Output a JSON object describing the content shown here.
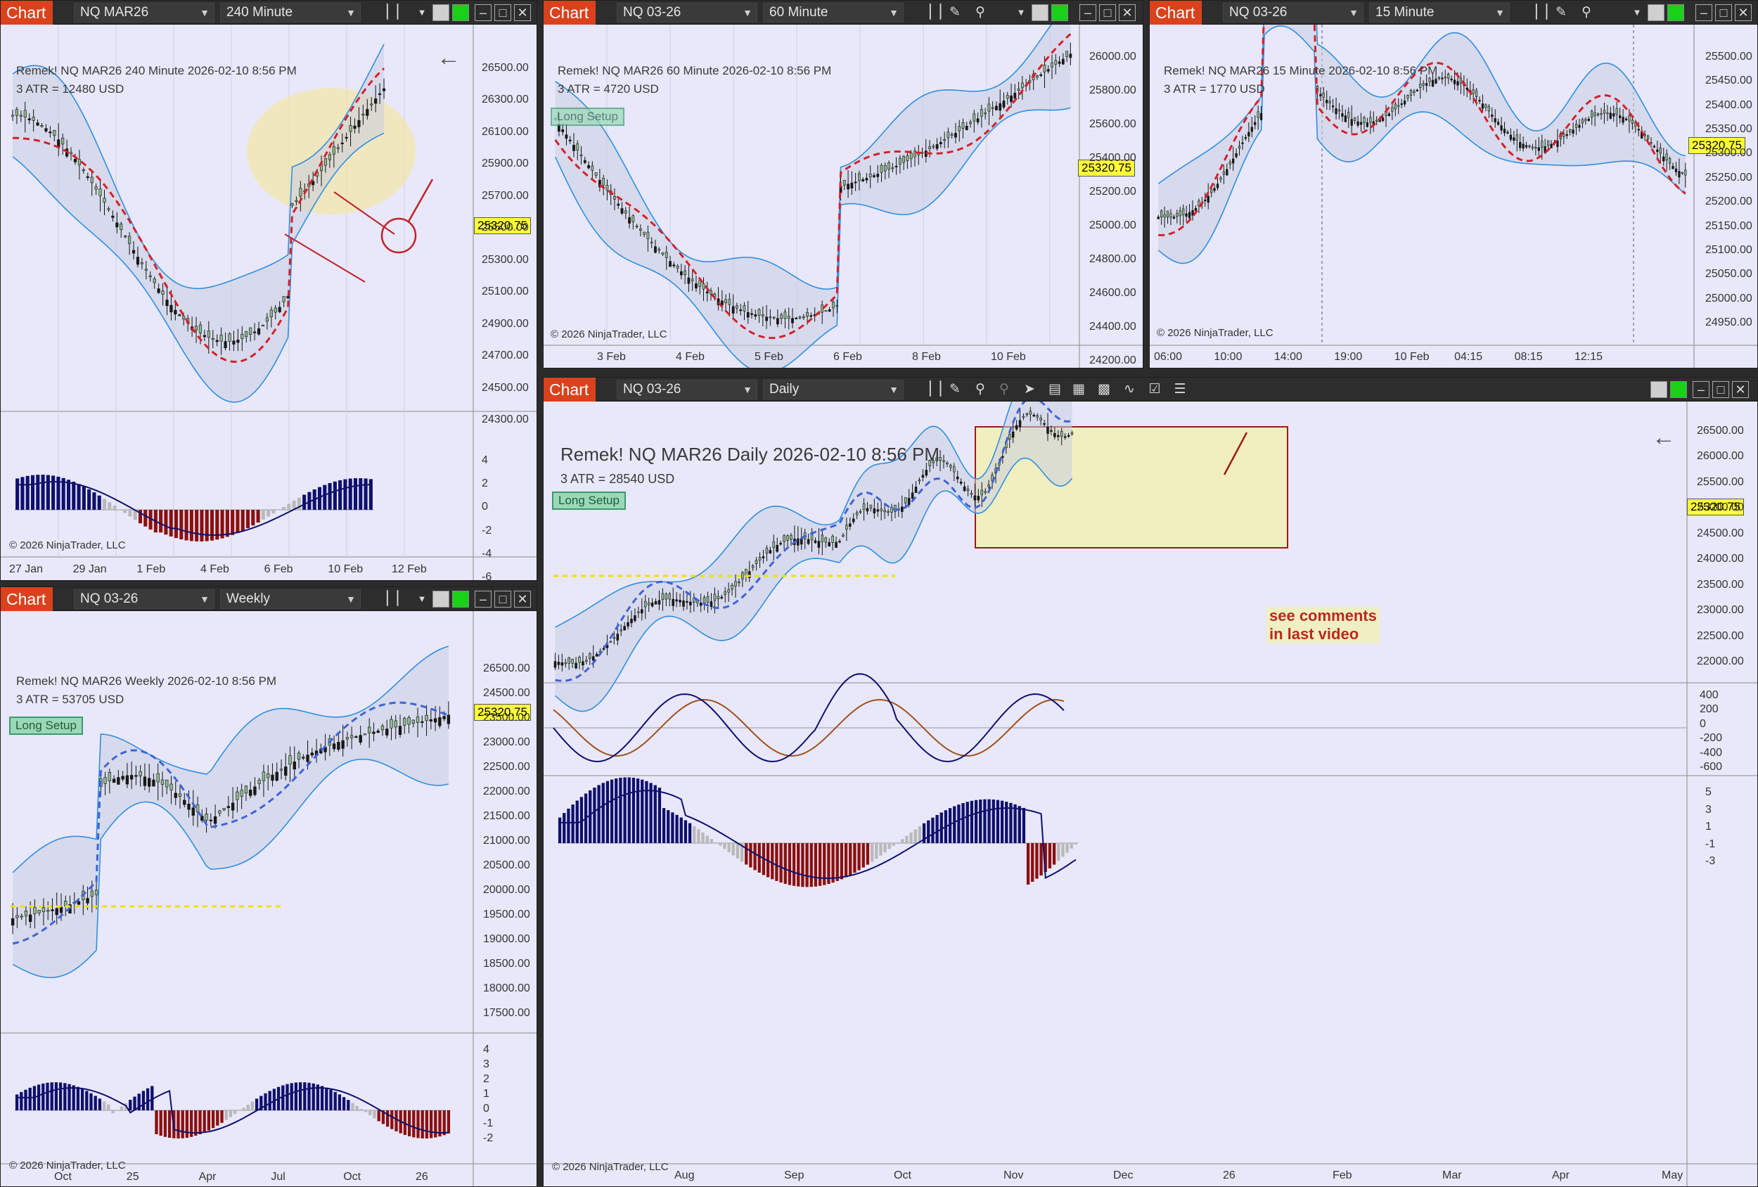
{
  "windows": {
    "w240": {
      "chart_label": "Chart",
      "instrument": "NQ MAR26",
      "interval": "240 Minute",
      "overlay_title": "Remek!  NQ MAR26  240 Minute  2026-02-10 8:56 PM",
      "overlay_atr": "3 ATR = 12480 USD",
      "price_tag": "25320.75",
      "copyright": "© 2026 NinjaTrader, LLC",
      "price_axis": [
        "26500.00",
        "26300.00",
        "26100.00",
        "25900.00",
        "25700.00",
        "25500.00",
        "25300.00",
        "25100.00",
        "24900.00",
        "24700.00",
        "24500.00",
        "24300.00"
      ],
      "osc_axis": [
        "4",
        "2",
        "0",
        "-2",
        "-4",
        "-6"
      ],
      "time_axis": [
        "27 Jan",
        "29 Jan",
        "1 Feb",
        "4 Feb",
        "6 Feb",
        "10 Feb",
        "12 Feb"
      ]
    },
    "w60": {
      "chart_label": "Chart",
      "instrument": "NQ 03-26",
      "interval": "60 Minute",
      "overlay_title": "Remek!  NQ MAR26  60 Minute  2026-02-10 8:56 PM",
      "overlay_atr": "3 ATR = 4720 USD",
      "setup": "Long Setup",
      "price_tag": "25320.75",
      "copyright": "© 2026 NinjaTrader, LLC",
      "price_axis": [
        "26000.00",
        "25800.00",
        "25600.00",
        "25400.00",
        "25200.00",
        "25000.00",
        "24800.00",
        "24600.00",
        "24400.00",
        "24200.00"
      ],
      "time_axis": [
        "3 Feb",
        "4 Feb",
        "5 Feb",
        "6 Feb",
        "8 Feb",
        "10 Feb"
      ]
    },
    "w15": {
      "chart_label": "Chart",
      "instrument": "NQ 03-26",
      "interval": "15 Minute",
      "overlay_title": "Remek!  NQ MAR26  15 Minute  2026-02-10 8:56 PM",
      "overlay_atr": "3 ATR = 1770 USD",
      "price_tag": "25320.75",
      "copyright": "© 2026 NinjaTrader, LLC",
      "price_axis": [
        "25500.00",
        "25450.00",
        "25400.00",
        "25350.00",
        "25300.00",
        "25250.00",
        "25200.00",
        "25150.00",
        "25100.00",
        "25050.00",
        "25000.00",
        "24950.00"
      ],
      "time_axis": [
        "06:00",
        "10:00",
        "14:00",
        "19:00",
        "10 Feb",
        "04:15",
        "08:15",
        "12:15"
      ]
    },
    "wW": {
      "chart_label": "Chart",
      "instrument": "NQ 03-26",
      "interval": "Weekly",
      "overlay_title": "Remek!  NQ MAR26  Weekly  2026-02-10 8:56 PM",
      "overlay_atr": "3 ATR = 53705 USD",
      "setup": "Long Setup",
      "price_tag": "25320.75",
      "copyright": "© 2026 NinjaTrader, LLC",
      "price_axis": [
        "26500.00",
        "24500.00",
        "23500.00",
        "23000.00",
        "22500.00",
        "22000.00",
        "21500.00",
        "21000.00",
        "20500.00",
        "20000.00",
        "19500.00",
        "19000.00",
        "18500.00",
        "18000.00",
        "17500.00"
      ],
      "osc_axis": [
        "4",
        "3",
        "2",
        "1",
        "0",
        "-1",
        "-2"
      ],
      "time_axis": [
        "Oct",
        "25",
        "Apr",
        "Jul",
        "Oct",
        "26"
      ]
    },
    "wD": {
      "chart_label": "Chart",
      "instrument": "NQ 03-26",
      "interval": "Daily",
      "overlay_title": "Remek!  NQ MAR26  Daily  2026-02-10 8:56 PM",
      "overlay_atr": "3 ATR = 28540 USD",
      "setup": "Long Setup",
      "price_tag": "25320.75",
      "copyright": "© 2026 NinjaTrader, LLC",
      "note_line1": "see comments",
      "note_line2": "in last video",
      "price_axis": [
        "26500.00",
        "26000.00",
        "25500.00",
        "25000.00",
        "24500.00",
        "24000.00",
        "23500.00",
        "23000.00",
        "22500.00",
        "22000.00"
      ],
      "osc1_axis": [
        "400",
        "200",
        "0",
        "-200",
        "-400",
        "-600"
      ],
      "osc2_axis": [
        "5",
        "3",
        "1",
        "-1",
        "-3"
      ],
      "time_axis": [
        "Aug",
        "Sep",
        "Oct",
        "Nov",
        "Dec",
        "26",
        "Feb",
        "Mar",
        "Apr",
        "May"
      ]
    }
  },
  "colors": {
    "chart_tag": "#d9421c",
    "background": "#e8e8fa",
    "band": "#2e8fe0",
    "bull_bar": "#0f0f6e",
    "bear_bar": "#8b0f0f",
    "highlight": "#f2f0b0"
  }
}
